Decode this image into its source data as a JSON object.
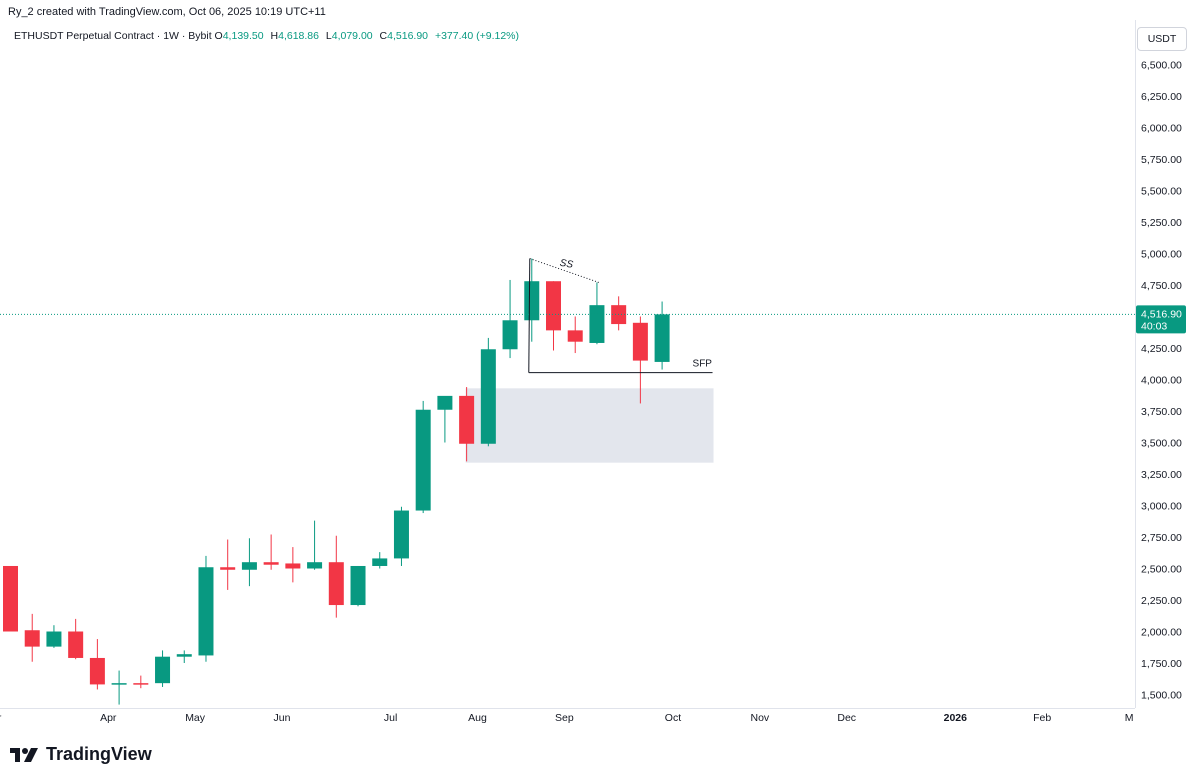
{
  "header": {
    "credit": "Ry_2 created with TradingView.com, Oct 06, 2025 10:19 UTC+11"
  },
  "symbol": {
    "name": "ETHUSDT Perpetual Contract · 1W · Bybit",
    "o_label": "O",
    "o": "4,139.50",
    "h_label": "H",
    "h": "4,618.86",
    "l_label": "L",
    "l": "4,079.00",
    "c_label": "C",
    "c": "4,516.90",
    "change": "+377.40 (+9.12%)"
  },
  "currency_button": "USDT",
  "last_price": {
    "value": "4,516.90",
    "countdown": "40:03"
  },
  "brand": {
    "name": "TradingView"
  },
  "colors": {
    "up": "#089981",
    "down": "#f23645",
    "zone": "#e0e3eb",
    "price_line": "#089981"
  },
  "chart_data": {
    "type": "candlestick",
    "y_ticks": [
      "6,500.00",
      "6,250.00",
      "6,000.00",
      "5,750.00",
      "5,500.00",
      "5,250.00",
      "5,000.00",
      "4,750.00",
      "4,250.00",
      "4,000.00",
      "3,750.00",
      "3,500.00",
      "3,250.00",
      "3,000.00",
      "2,750.00",
      "2,500.00",
      "2,250.00",
      "2,000.00",
      "1,750.00",
      "1,500.00"
    ],
    "y_tick_values": [
      6500,
      6250,
      6000,
      5750,
      5500,
      5250,
      5000,
      4750,
      4250,
      4000,
      3750,
      3500,
      3250,
      3000,
      2750,
      2500,
      2250,
      2000,
      1750,
      1500
    ],
    "ylim": [
      1400,
      6650
    ],
    "x_labels": [
      {
        "label": "r",
        "week": -0.5
      },
      {
        "label": "Apr",
        "week": 4.5
      },
      {
        "label": "May",
        "week": 8.5
      },
      {
        "label": "Jun",
        "week": 12.5
      },
      {
        "label": "Jul",
        "week": 17.5
      },
      {
        "label": "Aug",
        "week": 21.5
      },
      {
        "label": "Sep",
        "week": 25.5
      },
      {
        "label": "Oct",
        "week": 30.5
      },
      {
        "label": "Nov",
        "week": 34.5
      },
      {
        "label": "Dec",
        "week": 38.5
      },
      {
        "label": "2026",
        "week": 43.5
      },
      {
        "label": "Feb",
        "week": 47.5
      },
      {
        "label": "M",
        "week": 51.5
      }
    ],
    "candles": [
      {
        "o": 2520,
        "h": 2520,
        "l": 2000,
        "c": 2000
      },
      {
        "o": 2010,
        "h": 2140,
        "l": 1760,
        "c": 1880
      },
      {
        "o": 1880,
        "h": 2050,
        "l": 1870,
        "c": 2000
      },
      {
        "o": 2000,
        "h": 2100,
        "l": 1780,
        "c": 1790
      },
      {
        "o": 1790,
        "h": 1940,
        "l": 1540,
        "c": 1580
      },
      {
        "o": 1580,
        "h": 1690,
        "l": 1420,
        "c": 1590
      },
      {
        "o": 1590,
        "h": 1650,
        "l": 1550,
        "c": 1580
      },
      {
        "o": 1590,
        "h": 1850,
        "l": 1560,
        "c": 1800
      },
      {
        "o": 1800,
        "h": 1850,
        "l": 1750,
        "c": 1820
      },
      {
        "o": 1810,
        "h": 2600,
        "l": 1760,
        "c": 2510
      },
      {
        "o": 2510,
        "h": 2730,
        "l": 2330,
        "c": 2490
      },
      {
        "o": 2490,
        "h": 2740,
        "l": 2360,
        "c": 2550
      },
      {
        "o": 2550,
        "h": 2770,
        "l": 2490,
        "c": 2530
      },
      {
        "o": 2540,
        "h": 2670,
        "l": 2390,
        "c": 2500
      },
      {
        "o": 2500,
        "h": 2880,
        "l": 2490,
        "c": 2550
      },
      {
        "o": 2550,
        "h": 2760,
        "l": 2110,
        "c": 2210
      },
      {
        "o": 2210,
        "h": 2520,
        "l": 2200,
        "c": 2520
      },
      {
        "o": 2520,
        "h": 2630,
        "l": 2500,
        "c": 2580
      },
      {
        "o": 2580,
        "h": 2990,
        "l": 2520,
        "c": 2960
      },
      {
        "o": 2960,
        "h": 3830,
        "l": 2940,
        "c": 3760
      },
      {
        "o": 3760,
        "h": 3860,
        "l": 3500,
        "c": 3870
      },
      {
        "o": 3870,
        "h": 3940,
        "l": 3350,
        "c": 3490
      },
      {
        "o": 3490,
        "h": 4330,
        "l": 3470,
        "c": 4240
      },
      {
        "o": 4240,
        "h": 4790,
        "l": 4170,
        "c": 4470
      },
      {
        "o": 4470,
        "h": 4960,
        "l": 4300,
        "c": 4780
      },
      {
        "o": 4780,
        "h": 4780,
        "l": 4230,
        "c": 4390
      },
      {
        "o": 4390,
        "h": 4500,
        "l": 4210,
        "c": 4300
      },
      {
        "o": 4290,
        "h": 4770,
        "l": 4280,
        "c": 4590
      },
      {
        "o": 4590,
        "h": 4660,
        "l": 4390,
        "c": 4440
      },
      {
        "o": 4450,
        "h": 4500,
        "l": 3810,
        "c": 4150
      },
      {
        "o": 4139.5,
        "h": 4618.86,
        "l": 4079,
        "c": 4516.9
      }
    ],
    "annotations": {
      "ss_label": "SS",
      "sfp_label": "SFP",
      "ss_line": {
        "from": {
          "week": 24,
          "price": 4960
        },
        "to": {
          "week": 27,
          "price": 4770
        }
      },
      "sfp_line": {
        "from_week": 24,
        "to_week": 32,
        "price": 4055
      },
      "zone": {
        "from_week": 21,
        "to_week": 32,
        "top": 3930,
        "bottom": 3340
      }
    },
    "last_price_value": 4516.9
  }
}
